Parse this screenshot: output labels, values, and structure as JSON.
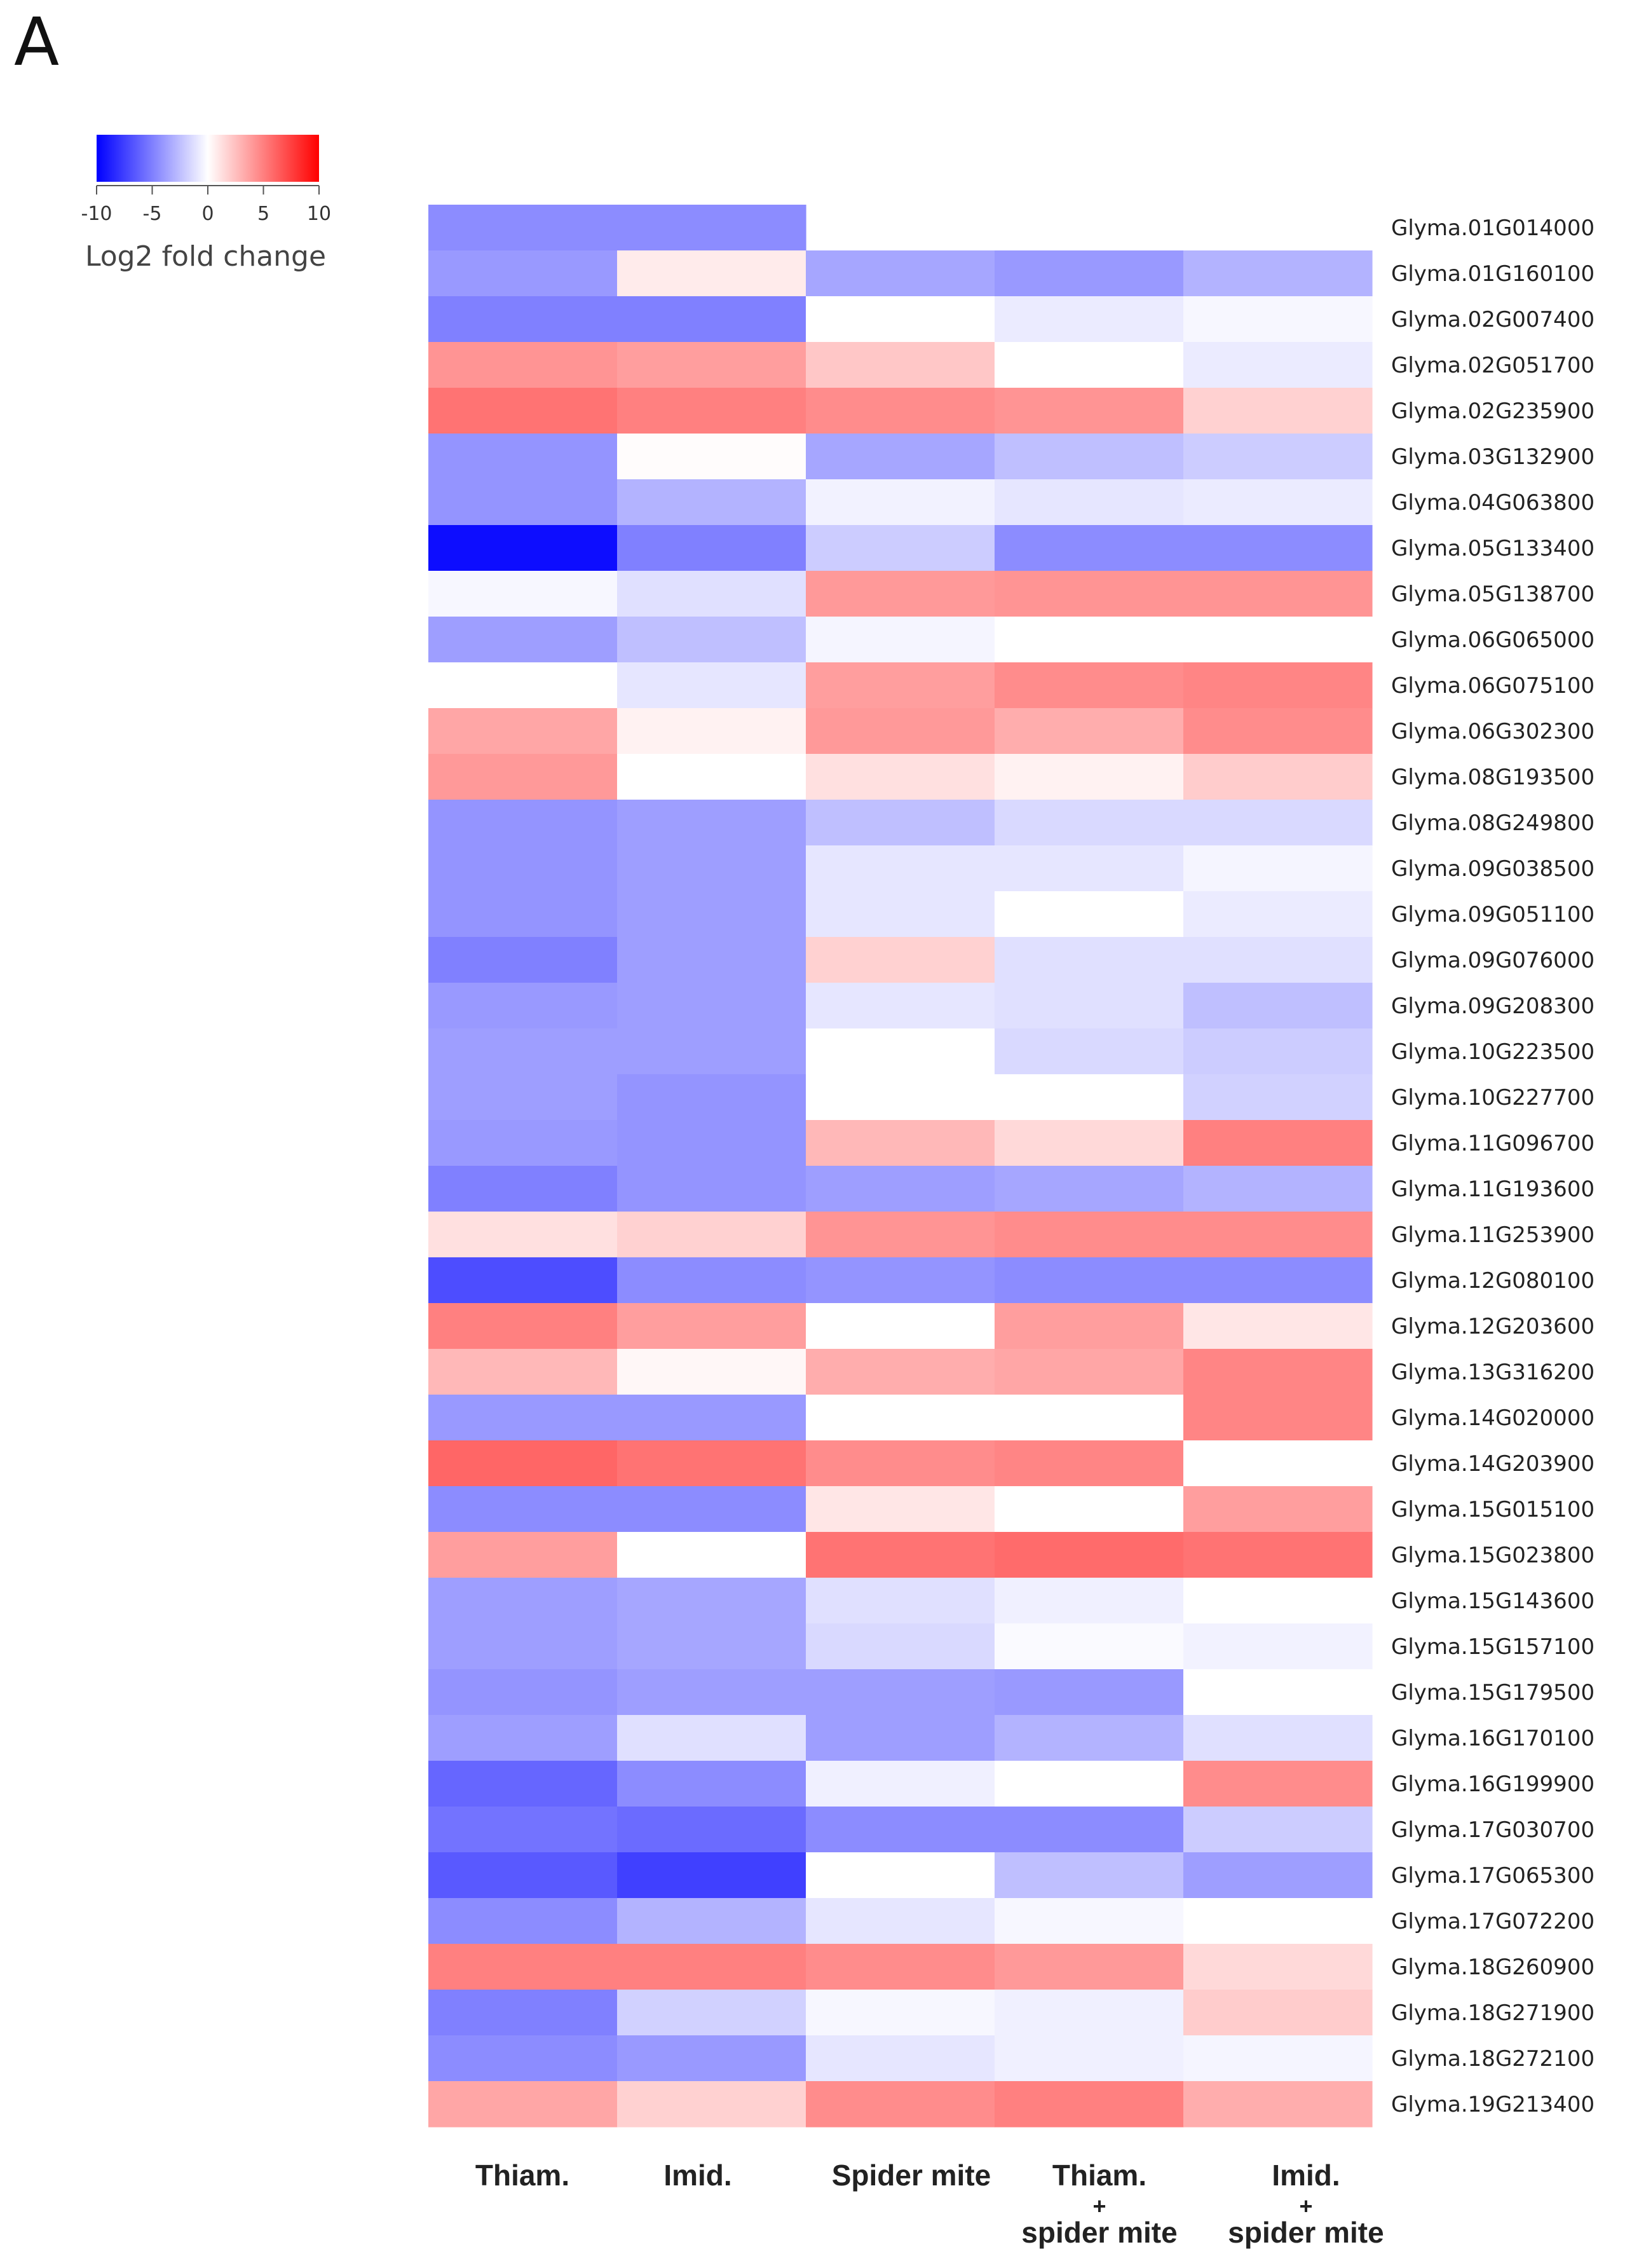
{
  "panel_label": "A",
  "chart_data": {
    "type": "heatmap",
    "title": "",
    "legend": {
      "title": "Log2 fold change",
      "ticks": [
        -10,
        -5,
        0,
        5,
        10
      ],
      "range": [
        -10,
        10
      ],
      "colors": {
        "low": "#0000ff",
        "mid": "#ffffff",
        "high": "#ff0000"
      },
      "placement": "top-left"
    },
    "columns": [
      [
        "Thiam."
      ],
      [
        "Imid."
      ],
      [
        "Spider mite"
      ],
      [
        "Thiam.",
        "+",
        "spider mite"
      ],
      [
        "Imid.",
        "+",
        "spider mite"
      ]
    ],
    "rows": [
      "Glyma.01G014000",
      "Glyma.01G160100",
      "Glyma.02G007400",
      "Glyma.02G051700",
      "Glyma.02G235900",
      "Glyma.03G132900",
      "Glyma.04G063800",
      "Glyma.05G133400",
      "Glyma.05G138700",
      "Glyma.06G065000",
      "Glyma.06G075100",
      "Glyma.06G302300",
      "Glyma.08G193500",
      "Glyma.08G249800",
      "Glyma.09G038500",
      "Glyma.09G051100",
      "Glyma.09G076000",
      "Glyma.09G208300",
      "Glyma.10G223500",
      "Glyma.10G227700",
      "Glyma.11G096700",
      "Glyma.11G193600",
      "Glyma.11G253900",
      "Glyma.12G080100",
      "Glyma.12G203600",
      "Glyma.13G316200",
      "Glyma.14G020000",
      "Glyma.14G203900",
      "Glyma.15G015100",
      "Glyma.15G023800",
      "Glyma.15G143600",
      "Glyma.15G157100",
      "Glyma.15G179500",
      "Glyma.16G170100",
      "Glyma.16G199900",
      "Glyma.17G030700",
      "Glyma.17G065300",
      "Glyma.17G072200",
      "Glyma.18G260900",
      "Glyma.18G271900",
      "Glyma.18G272100",
      "Glyma.19G213400"
    ],
    "values": [
      [
        -4.5,
        -4.5,
        null,
        null,
        null
      ],
      [
        -4.0,
        0.8,
        -3.5,
        -4.0,
        -3.0
      ],
      [
        -5.0,
        -5.0,
        0,
        -0.8,
        -0.3
      ],
      [
        4.2,
        3.8,
        2.2,
        0,
        -0.8
      ],
      [
        5.5,
        5.0,
        4.5,
        4.2,
        1.8
      ],
      [
        -4.2,
        0.1,
        -3.5,
        -2.5,
        -2.0
      ],
      [
        -4.2,
        -3.0,
        -0.5,
        -1.0,
        -0.8
      ],
      [
        -9.5,
        -5.0,
        -2.0,
        -4.5,
        -4.5
      ],
      [
        -0.3,
        -1.2,
        4.0,
        4.2,
        4.2
      ],
      [
        -3.8,
        -2.5,
        -0.4,
        0,
        0
      ],
      [
        0,
        -1.0,
        3.8,
        4.5,
        4.8
      ],
      [
        3.5,
        0.5,
        4.0,
        3.2,
        4.5
      ],
      [
        4.0,
        0,
        1.2,
        0.5,
        2.0
      ],
      [
        -4.2,
        -3.8,
        -2.5,
        -1.5,
        -1.5
      ],
      [
        -4.2,
        -3.8,
        -1.0,
        -1.0,
        -0.4
      ],
      [
        -4.2,
        -3.8,
        -1.0,
        0,
        -0.8
      ],
      [
        -5.0,
        -3.8,
        1.8,
        -1.2,
        -1.2
      ],
      [
        -4.0,
        -3.8,
        -1.0,
        -1.2,
        -2.5
      ],
      [
        -3.8,
        -3.8,
        0,
        -1.5,
        -2.0
      ],
      [
        -3.8,
        -4.2,
        0,
        0,
        -1.8
      ],
      [
        -4.0,
        -4.2,
        2.8,
        1.5,
        5.0
      ],
      [
        -5.0,
        -4.2,
        -3.8,
        -3.5,
        -3.0
      ],
      [
        1.2,
        1.8,
        4.2,
        4.5,
        4.5
      ],
      [
        -7.0,
        -4.5,
        -4.2,
        -4.5,
        -4.5
      ],
      [
        5.0,
        3.8,
        0,
        3.8,
        1.0
      ],
      [
        2.8,
        0.3,
        3.2,
        3.5,
        4.8
      ],
      [
        -4.0,
        -4.0,
        0,
        0,
        4.8
      ],
      [
        6.0,
        5.5,
        4.5,
        4.8,
        0
      ],
      [
        -4.5,
        -4.5,
        1.0,
        0,
        3.8
      ],
      [
        3.8,
        0,
        5.5,
        5.8,
        5.5
      ],
      [
        -3.8,
        -3.5,
        -1.2,
        -0.6,
        0
      ],
      [
        -3.8,
        -3.5,
        -1.5,
        -0.2,
        -0.5
      ],
      [
        -4.2,
        -3.8,
        -3.8,
        -4.0,
        0
      ],
      [
        -3.8,
        -1.2,
        -3.8,
        -3.0,
        -1.2
      ],
      [
        -6.0,
        -4.5,
        -0.6,
        0,
        4.5
      ],
      [
        -5.5,
        -5.8,
        -4.5,
        -4.5,
        -2.0
      ],
      [
        -6.5,
        -7.5,
        0,
        -2.5,
        -3.8
      ],
      [
        -4.5,
        -3.0,
        -1.0,
        -0.3,
        0
      ],
      [
        5.0,
        5.0,
        4.5,
        4.0,
        1.5
      ],
      [
        -5.0,
        -1.8,
        -0.3,
        -0.6,
        2.0
      ],
      [
        -4.5,
        -4.0,
        -1.0,
        -0.6,
        -0.4
      ],
      [
        3.5,
        1.8,
        4.5,
        5.0,
        3.2
      ]
    ]
  }
}
